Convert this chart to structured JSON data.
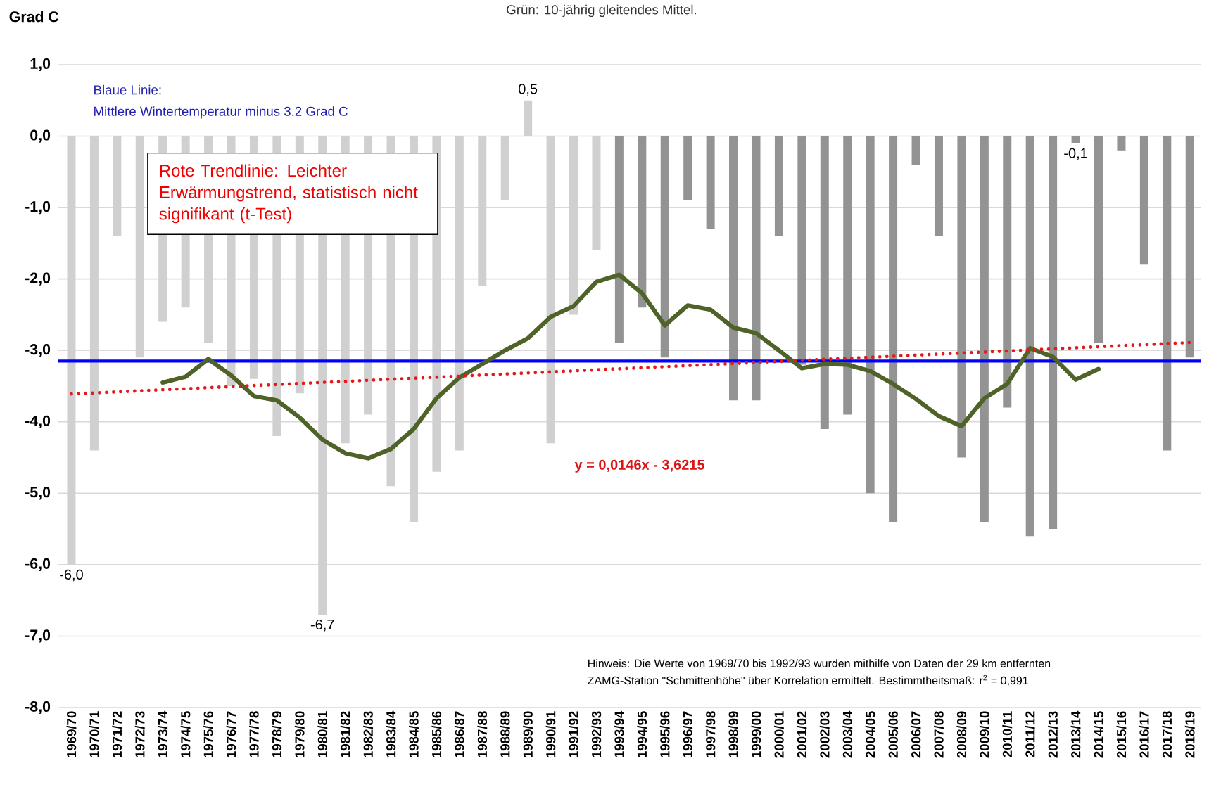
{
  "chart_data": {
    "type": "bar",
    "subtitle": "Grün: 10-jährig gleitendes Mittel.",
    "ylabel": "Grad C",
    "categories": [
      "1969/70",
      "1970/71",
      "1971/72",
      "1972/73",
      "1973/74",
      "1974/75",
      "1975/76",
      "1976/77",
      "1977/78",
      "1978/79",
      "1979/80",
      "1980/81",
      "1981/82",
      "1982/83",
      "1983/84",
      "1984/85",
      "1985/86",
      "1986/87",
      "1987/88",
      "1988/89",
      "1989/90",
      "1990/91",
      "1991/92",
      "1992/93",
      "1993/94",
      "1994/95",
      "1995/96",
      "1996/97",
      "1997/98",
      "1998/99",
      "1999/00",
      "2000/01",
      "2001/02",
      "2002/03",
      "2003/04",
      "2004/05",
      "2005/06",
      "2006/07",
      "2007/08",
      "2008/09",
      "2009/10",
      "2010/11",
      "2011/12",
      "2012/13",
      "2013/14",
      "2014/15",
      "2015/16",
      "2016/17",
      "2017/18",
      "2018/19"
    ],
    "series": [
      {
        "colors": [
          "#d0d0d0",
          "#d0d0d0",
          "#d0d0d0",
          "#d0d0d0",
          "#d0d0d0",
          "#d0d0d0",
          "#d0d0d0",
          "#d0d0d0",
          "#d0d0d0",
          "#d0d0d0",
          "#d0d0d0",
          "#d0d0d0",
          "#d0d0d0",
          "#d0d0d0",
          "#d0d0d0",
          "#d0d0d0",
          "#d0d0d0",
          "#d0d0d0",
          "#d0d0d0",
          "#d0d0d0",
          "#d0d0d0",
          "#d0d0d0",
          "#d0d0d0",
          "#d0d0d0",
          "#939393",
          "#939393",
          "#939393",
          "#939393",
          "#939393",
          "#939393",
          "#939393",
          "#939393",
          "#939393",
          "#939393",
          "#939393",
          "#939393",
          "#939393",
          "#939393",
          "#939393",
          "#939393",
          "#939393",
          "#939393",
          "#939393",
          "#939393",
          "#939393",
          "#939393",
          "#939393",
          "#939393",
          "#939393",
          "#939393"
        ],
        "values": [
          -6.0,
          -4.4,
          -1.4,
          -3.1,
          -2.6,
          -2.4,
          -2.9,
          -3.5,
          -3.4,
          -4.2,
          -3.6,
          -6.7,
          -4.3,
          -3.9,
          -4.9,
          -5.4,
          -4.7,
          -4.4,
          -2.1,
          -0.9,
          0.5,
          -4.3,
          -2.5,
          -1.6,
          -2.9,
          -2.4,
          -3.1,
          -0.9,
          -1.3,
          -3.7,
          -3.7,
          -1.4,
          -3.2,
          -4.1,
          -3.9,
          -5.0,
          -5.4,
          -0.4,
          -1.4,
          -4.5,
          -5.4,
          -3.8,
          -5.6,
          -5.5,
          -0.1,
          -2.9,
          -0.2,
          -1.8,
          -4.4,
          -3.1
        ],
        "value_labels": [
          "-6,0",
          null,
          null,
          null,
          null,
          null,
          null,
          null,
          null,
          null,
          null,
          "-6,7",
          null,
          null,
          null,
          null,
          null,
          null,
          null,
          null,
          "0,5",
          null,
          null,
          null,
          null,
          null,
          null,
          null,
          null,
          null,
          null,
          null,
          null,
          null,
          null,
          null,
          null,
          null,
          null,
          null,
          null,
          null,
          null,
          null,
          "-0,1",
          null,
          null,
          null,
          null,
          null
        ]
      },
      {
        "type": "line",
        "color": "#4f6228",
        "values": [
          null,
          null,
          null,
          null,
          -3.45,
          -3.37,
          -3.12,
          -3.35,
          -3.64,
          -3.7,
          -3.94,
          -4.25,
          -4.44,
          -4.51,
          -4.38,
          -4.1,
          -3.67,
          -3.38,
          -3.19,
          -3.0,
          -2.83,
          -2.53,
          -2.38,
          -2.04,
          -1.94,
          -2.2,
          -2.65,
          -2.37,
          -2.43,
          -2.68,
          -2.76,
          -3.0,
          -3.25,
          -3.19,
          -3.2,
          -3.29,
          -3.47,
          -3.68,
          -3.92,
          -4.06,
          -3.67,
          -3.47,
          -2.97,
          -3.09,
          -3.41,
          -3.26,
          null,
          null,
          null,
          null
        ]
      },
      {
        "type": "line",
        "color": "#e31a1c",
        "line_style": "dotted",
        "x": [
          "1969/70",
          "2018/19"
        ],
        "values": [
          -3.61,
          -2.89
        ]
      }
    ],
    "ref_lines": [
      {
        "axis": "y",
        "value": -3.15,
        "color": "#0000ff"
      }
    ],
    "ylim": [
      -8,
      1
    ],
    "yticks": [
      {
        "value": 1,
        "label": "1,0"
      },
      {
        "value": 0,
        "label": "0,0"
      },
      {
        "value": -1,
        "label": "-1,0"
      },
      {
        "value": -2,
        "label": "-2,0"
      },
      {
        "value": -3,
        "label": "-3,0"
      },
      {
        "value": -4,
        "label": "-4,0"
      },
      {
        "value": -5,
        "label": "-5,0"
      },
      {
        "value": -6,
        "label": "-6,0"
      },
      {
        "value": -7,
        "label": "-7,0"
      },
      {
        "value": -8,
        "label": "-8,0"
      }
    ],
    "grid": "y",
    "annotations": [
      "Blaue Linie:",
      "Mittlere Wintertemperatur minus 3,2 Grad C",
      "Rote Trendlinie: Leichter Erwärmungstrend, statistisch nicht signifikant (t-Test)",
      "y = 0,0146x - 3,6215",
      "Hinweis: Die Werte von 1969/70 bis 1992/93 wurden mithilfe von Daten der 29 km entfernten",
      "ZAMG-Station \"Schmittenhöhe\" über Korrelation ermittelt. Bestimmtheitsmaß: r$^{2}$ = 0,991"
    ]
  }
}
